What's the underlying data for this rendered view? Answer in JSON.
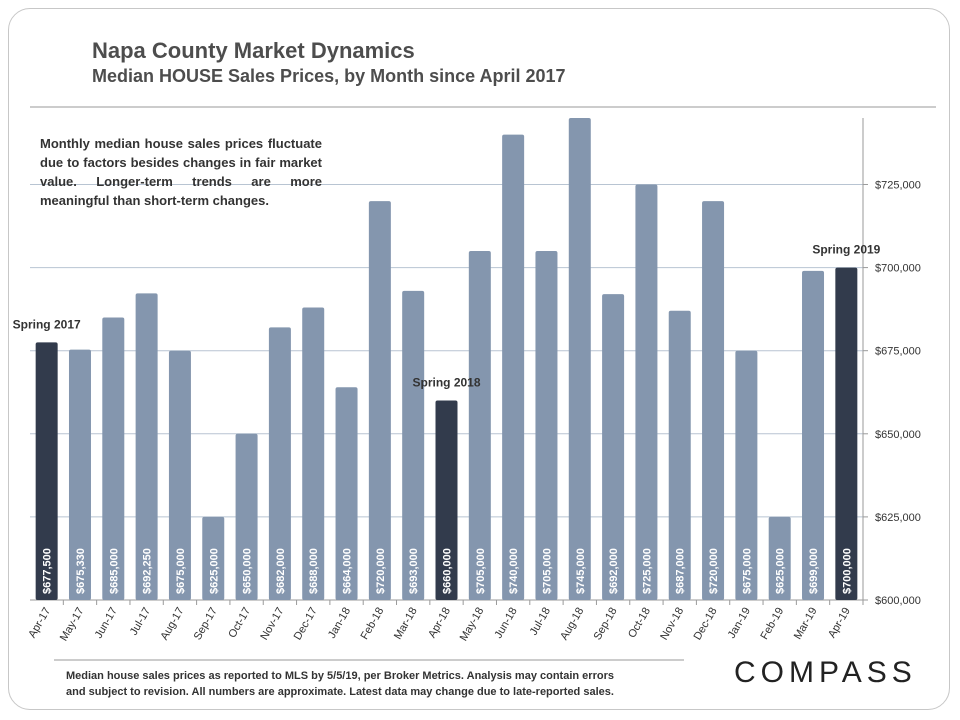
{
  "header": {
    "title": "Napa County Market Dynamics",
    "subtitle": "Median HOUSE Sales Prices, by Month since April 2017"
  },
  "note": "Monthly median house sales prices fluctuate due to factors besides changes in fair market value. Longer-term trends are more meaningful than short-term changes.",
  "footnote": {
    "line1": "Median house sales prices as reported to MLS by 5/5/19, per Broker Metrics.  Analysis may contain errors",
    "line2": "and subject to revision. All numbers are approximate. Latest data may change due to late-reported sales."
  },
  "logo": "COMPASS",
  "colors": {
    "bar": "#8496ae",
    "highlight": "#323b4c",
    "grid": "#b8c4d2",
    "rule": "#9a9a9a"
  },
  "chart_data": {
    "type": "bar",
    "title": "Median HOUSE Sales Prices, by Month since April 2017",
    "categories": [
      "Apr-17",
      "May-17",
      "Jun-17",
      "Jul-17",
      "Aug-17",
      "Sep-17",
      "Oct-17",
      "Nov-17",
      "Dec-17",
      "Jan-18",
      "Feb-18",
      "Mar-18",
      "Apr-18",
      "May-18",
      "Jun-18",
      "Jul-18",
      "Aug-18",
      "Sep-18",
      "Oct-18",
      "Nov-18",
      "Dec-18",
      "Jan-19",
      "Feb-19",
      "Mar-19",
      "Apr-19"
    ],
    "values": [
      677500,
      675330,
      685000,
      692250,
      675000,
      625000,
      650000,
      682000,
      688000,
      664000,
      720000,
      693000,
      660000,
      705000,
      740000,
      705000,
      745000,
      692000,
      725000,
      687000,
      720000,
      675000,
      625000,
      699000,
      700000
    ],
    "value_labels": [
      "$677,500",
      "$675,330",
      "$685,000",
      "$692,250",
      "$675,000",
      "$625,000",
      "$650,000",
      "$682,000",
      "$688,000",
      "$664,000",
      "$720,000",
      "$693,000",
      "$660,000",
      "$705,000",
      "$740,000",
      "$705,000",
      "$745,000",
      "$692,000",
      "$725,000",
      "$687,000",
      "$720,000",
      "$675,000",
      "$625,000",
      "$699,000",
      "$700,000"
    ],
    "highlighted": [
      "Apr-17",
      "Apr-18",
      "Apr-19"
    ],
    "annotations": [
      {
        "category": "Apr-17",
        "text": "Spring 2017"
      },
      {
        "category": "Apr-18",
        "text": "Spring 2018"
      },
      {
        "category": "Apr-19",
        "text": "Spring 2019"
      }
    ],
    "ylim": [
      600000,
      745000
    ],
    "yticks": [
      600000,
      625000,
      650000,
      675000,
      700000,
      725000
    ],
    "ytick_labels": [
      "$600,000",
      "$625,000",
      "$650,000",
      "$675,000",
      "$700,000",
      "$725,000"
    ],
    "y_axis_side": "right",
    "grid": true
  }
}
